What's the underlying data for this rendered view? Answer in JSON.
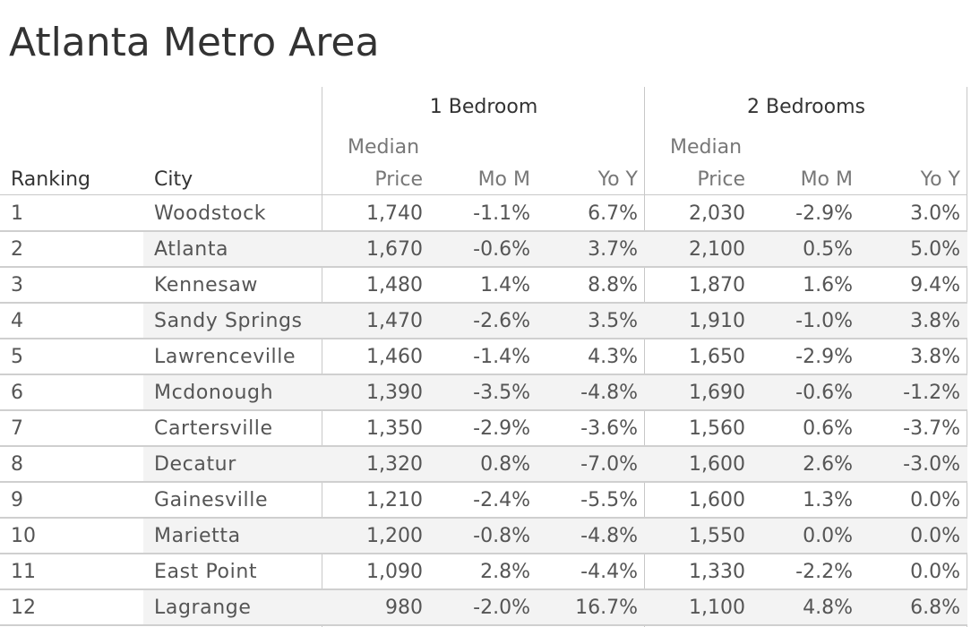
{
  "chart_data": {
    "type": "table",
    "title": "Atlanta Metro Area",
    "groups": [
      "1 Bedroom",
      "2 Bedrooms"
    ],
    "columns": {
      "ranking": "Ranking",
      "city": "City",
      "median_line1": "Median",
      "median_line2": "Price",
      "mom": "Mo M",
      "yoy": "Yo Y"
    },
    "rows": [
      {
        "rank": "1",
        "city": "Woodstock",
        "b1_price": "1,740",
        "b1_mom": "-1.1%",
        "b1_yoy": "6.7%",
        "b2_price": "2,030",
        "b2_mom": "-2.9%",
        "b2_yoy": "3.0%"
      },
      {
        "rank": "2",
        "city": "Atlanta",
        "b1_price": "1,670",
        "b1_mom": "-0.6%",
        "b1_yoy": "3.7%",
        "b2_price": "2,100",
        "b2_mom": "0.5%",
        "b2_yoy": "5.0%"
      },
      {
        "rank": "3",
        "city": "Kennesaw",
        "b1_price": "1,480",
        "b1_mom": "1.4%",
        "b1_yoy": "8.8%",
        "b2_price": "1,870",
        "b2_mom": "1.6%",
        "b2_yoy": "9.4%"
      },
      {
        "rank": "4",
        "city": "Sandy Springs",
        "b1_price": "1,470",
        "b1_mom": "-2.6%",
        "b1_yoy": "3.5%",
        "b2_price": "1,910",
        "b2_mom": "-1.0%",
        "b2_yoy": "3.8%"
      },
      {
        "rank": "5",
        "city": "Lawrenceville",
        "b1_price": "1,460",
        "b1_mom": "-1.4%",
        "b1_yoy": "4.3%",
        "b2_price": "1,650",
        "b2_mom": "-2.9%",
        "b2_yoy": "3.8%"
      },
      {
        "rank": "6",
        "city": "Mcdonough",
        "b1_price": "1,390",
        "b1_mom": "-3.5%",
        "b1_yoy": "-4.8%",
        "b2_price": "1,690",
        "b2_mom": "-0.6%",
        "b2_yoy": "-1.2%"
      },
      {
        "rank": "7",
        "city": "Cartersville",
        "b1_price": "1,350",
        "b1_mom": "-2.9%",
        "b1_yoy": "-3.6%",
        "b2_price": "1,560",
        "b2_mom": "0.6%",
        "b2_yoy": "-3.7%"
      },
      {
        "rank": "8",
        "city": "Decatur",
        "b1_price": "1,320",
        "b1_mom": "0.8%",
        "b1_yoy": "-7.0%",
        "b2_price": "1,600",
        "b2_mom": "2.6%",
        "b2_yoy": "-3.0%"
      },
      {
        "rank": "9",
        "city": "Gainesville",
        "b1_price": "1,210",
        "b1_mom": "-2.4%",
        "b1_yoy": "-5.5%",
        "b2_price": "1,600",
        "b2_mom": "1.3%",
        "b2_yoy": "0.0%"
      },
      {
        "rank": "10",
        "city": "Marietta",
        "b1_price": "1,200",
        "b1_mom": "-0.8%",
        "b1_yoy": "-4.8%",
        "b2_price": "1,550",
        "b2_mom": "0.0%",
        "b2_yoy": "0.0%"
      },
      {
        "rank": "11",
        "city": "East Point",
        "b1_price": "1,090",
        "b1_mom": "2.8%",
        "b1_yoy": "-4.4%",
        "b2_price": "1,330",
        "b2_mom": "-2.2%",
        "b2_yoy": "0.0%"
      },
      {
        "rank": "12",
        "city": "Lagrange",
        "b1_price": "980",
        "b1_mom": "-2.0%",
        "b1_yoy": "16.7%",
        "b2_price": "1,100",
        "b2_mom": "4.8%",
        "b2_yoy": "6.8%"
      }
    ],
    "colors": {
      "text": "#555555",
      "header": "#333333",
      "stripe": "#f3f3f3",
      "rule": "#cfcfcf"
    }
  }
}
